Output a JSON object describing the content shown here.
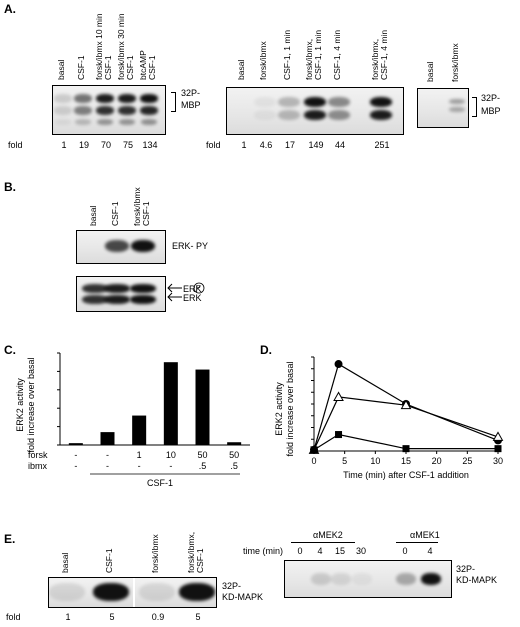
{
  "panelA": {
    "label": "A.",
    "fold_prefix": "fold",
    "blot1": {
      "lanes": [
        "basal",
        "CSF-1",
        "forsk/ibmx 10 min\nCSF-1",
        "forsk/ibmx 30 min\nCSF-1",
        "btcAMP\nCSF-1"
      ],
      "folds": [
        "1",
        "19",
        "70",
        "75",
        "134"
      ],
      "intensity": [
        0.15,
        0.55,
        0.95,
        0.95,
        1.0
      ]
    },
    "blot2": {
      "lanes": [
        "basal",
        "forsk/ibmx",
        "CSF-1, 1 min",
        "forsk/ibmx,\nCSF-1, 1 min",
        "CSF-1, 4 min",
        "forsk/ibmx,\nCSF-1, 4 min"
      ],
      "folds": [
        "1",
        "4.6",
        "17",
        "149",
        "44",
        "251"
      ],
      "intensity": [
        0.0,
        0.05,
        0.25,
        1.0,
        0.45,
        1.0
      ]
    },
    "blot3": {
      "lanes": [
        "basal",
        "forsk/ibmx"
      ],
      "intensity": [
        0.0,
        0.35
      ]
    },
    "mbp_label": "MBP",
    "p32_label": "32P-"
  },
  "panelB": {
    "label": "B.",
    "lanes": [
      "basal",
      "CSF-1",
      "forsk/ibmx\nCSF-1"
    ],
    "upper_label": "ERK- PY",
    "erkp_label": "ERK",
    "p_label": "P",
    "erk_label": "ERK"
  },
  "panelC": {
    "label": "C.",
    "ylabel_line1": "ERK2 activity",
    "ylabel_line2": "fold increase over basal",
    "row_labels": [
      "forsk",
      "ibmx"
    ],
    "forsk_values": [
      "-",
      "-",
      "1",
      "10",
      "50",
      "50"
    ],
    "ibmx_values": [
      "-",
      "-",
      "-",
      "-",
      ".5",
      ".5"
    ],
    "csf_label": "CSF-1"
  },
  "panelD": {
    "label": "D.",
    "ylabel_line1": "ERK2 activity",
    "ylabel_line2": "fold increase over basal",
    "xlabel": "Time (min) after CSF-1 addition"
  },
  "panelE": {
    "label": "E.",
    "blot1": {
      "lanes": [
        "basal",
        "CSF-1",
        "forsk/ibmx",
        "forsk/ibmx,\nCSF-1"
      ],
      "folds": [
        "1",
        "5",
        "0.9",
        "5"
      ],
      "intensity": [
        0.1,
        1.0,
        0.1,
        1.0
      ]
    },
    "fold_prefix": "fold",
    "kd_label": "KD-MAPK",
    "p32_label": "32P-",
    "blot2": {
      "mek2_label": "αMEK2",
      "mek1_label": "αMEK1",
      "time_label": "time (min)",
      "mek2_times": [
        "0",
        "4",
        "15",
        "30"
      ],
      "mek1_times": [
        "0",
        "4"
      ],
      "intensity": [
        0.0,
        0.15,
        0.1,
        0.05,
        0.3,
        1.0
      ]
    }
  },
  "chart_data": [
    {
      "type": "bar",
      "categories": [
        "-/-",
        "-/-",
        "1/-",
        "10/-",
        "50/.5",
        "50/.5"
      ],
      "values": [
        1,
        7,
        16,
        45,
        41,
        1.5
      ],
      "title": "",
      "xlabel": "",
      "ylabel": "ERK2 activity fold increase over basal",
      "ylim": [
        0,
        50
      ],
      "grid": false
    },
    {
      "type": "line",
      "x": [
        0,
        4,
        15,
        30
      ],
      "series": [
        {
          "marker": "filled-circle",
          "values": [
            1,
            74,
            40,
            9
          ]
        },
        {
          "marker": "open-triangle",
          "values": [
            1,
            46,
            39,
            12
          ]
        },
        {
          "marker": "filled-square",
          "values": [
            1,
            14,
            2,
            2
          ]
        }
      ],
      "xlabel": "Time (min) after CSF-1 addition",
      "ylabel": "ERK2 activity fold increase over basal",
      "xlim": [
        0,
        30
      ],
      "ylim": [
        0,
        80
      ],
      "xticks": [
        0,
        5,
        10,
        15,
        20,
        25,
        30
      ],
      "yticks": [
        0,
        10,
        20,
        30,
        40,
        50,
        60,
        70,
        80
      ],
      "grid": false
    }
  ]
}
